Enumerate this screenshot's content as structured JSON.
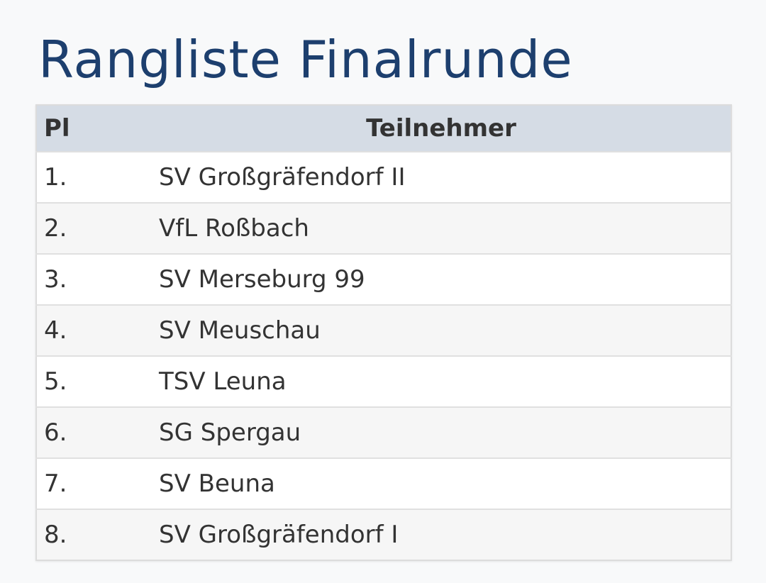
{
  "title": "Rangliste Finalrunde",
  "table": {
    "headers": [
      "Pl",
      "Teilnehmer"
    ],
    "rows": [
      [
        "1.",
        "SV Großgräfendorf II"
      ],
      [
        "2.",
        "VfL Roßbach"
      ],
      [
        "3.",
        "SV Merseburg 99"
      ],
      [
        "4.",
        "SV Meuschau"
      ],
      [
        "5.",
        "TSV Leuna"
      ],
      [
        "6.",
        "SG Spergau"
      ],
      [
        "7.",
        "SV Beuna"
      ],
      [
        "8.",
        "SV Großgräfendorf I"
      ]
    ]
  }
}
